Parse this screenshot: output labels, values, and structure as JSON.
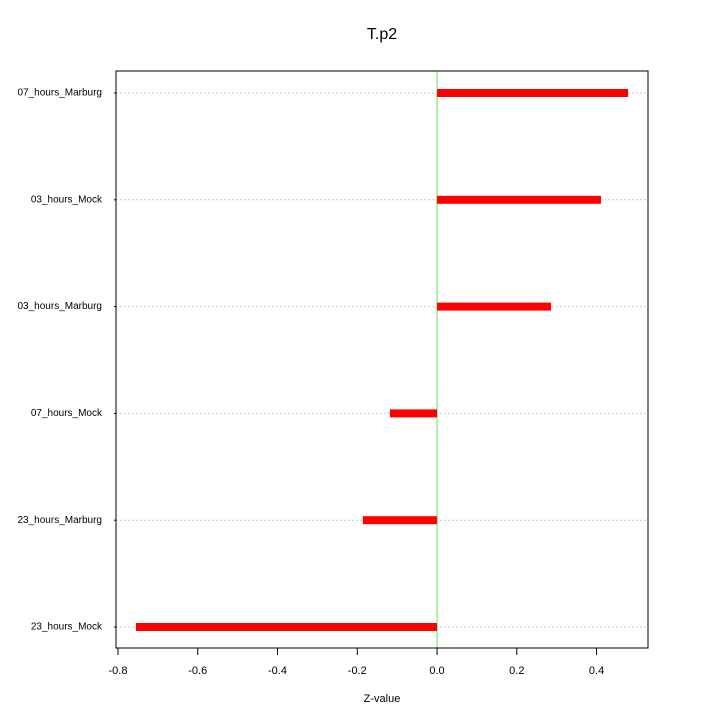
{
  "chart_data": {
    "type": "hbar",
    "title": "T.p2",
    "x_label": "Z-value",
    "categories": [
      "07_hours_Marburg",
      "03_hours_Mock",
      "03_hours_Marburg",
      "07_hours_Mock",
      "23_hours_Marburg",
      "23_hours_Mock"
    ],
    "values": [
      0.479,
      0.411,
      0.286,
      -0.118,
      -0.186,
      -0.755
    ],
    "color": "#ff0000",
    "xlim": [
      -0.805,
      0.529
    ],
    "xticks": [
      -0.8,
      -0.6,
      -0.4,
      -0.2,
      {
        "value": 0,
        "label": "0.0"
      },
      0.2,
      0.4
    ],
    "reference_line": 0,
    "reference_color": "#90ee90",
    "grid": true
  }
}
